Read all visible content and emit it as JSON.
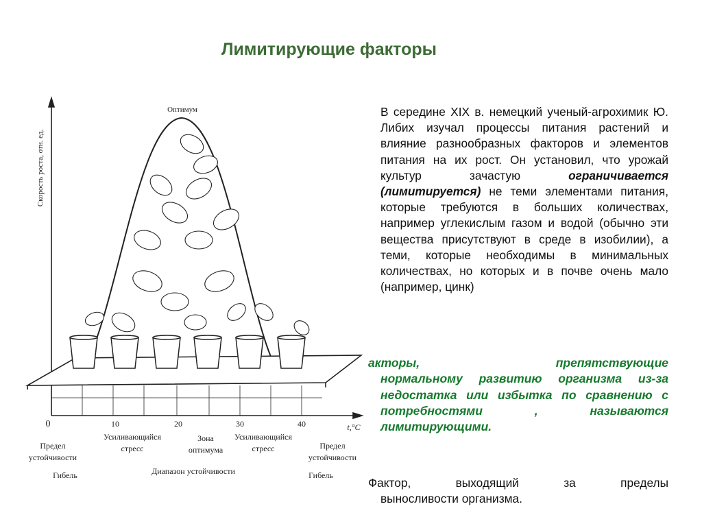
{
  "title": "Лимитирующие факторы",
  "paragraph": {
    "before": "В середине XIX в. немецкий ученый-агрохимик Ю. Либих изучал процессы питания растений и влияние разнообразных факторов и элементов питания на их рост. Он установил, что урожай культур зачастую ",
    "emphasis": "ограничивается (лимитируется)",
    "after": " не теми элементами питания, которые требуются в больших количествах, например углекислым газом и водой (обычно эти вещества присутствуют в среде в изобилии), а теми, которые необходимы в минимальных количествах, но которых и в почве очень мало (например, цинк)"
  },
  "definition_green": {
    "first": "акторы, препятствующие",
    "rest": "нормальному развитию организма из-за недостатка или избытка по сравнению с потребностями , называются лимитирующими."
  },
  "definition_black": {
    "first": "Фактор, выходящий за пределы",
    "rest": "выносливости организма."
  },
  "diagram": {
    "y_axis_label": "Скорость роста, отн. ед.",
    "peak_label": "Оптимум",
    "x_ticks": [
      "0",
      "10",
      "20",
      "30",
      "40"
    ],
    "x_unit": "t,°C",
    "zones": {
      "left_limit": [
        "Предел",
        "устойчивости"
      ],
      "left_stress": [
        "Усиливающийся",
        "стресс"
      ],
      "optimum": [
        "Зона",
        "оптимума"
      ],
      "right_stress": [
        "Усиливающийся",
        "стресс"
      ],
      "right_limit": [
        "Предел",
        "устойчивости"
      ],
      "range": "Диапазон устойчивости",
      "death_left": "Гибель",
      "death_right": "Гибель"
    }
  }
}
